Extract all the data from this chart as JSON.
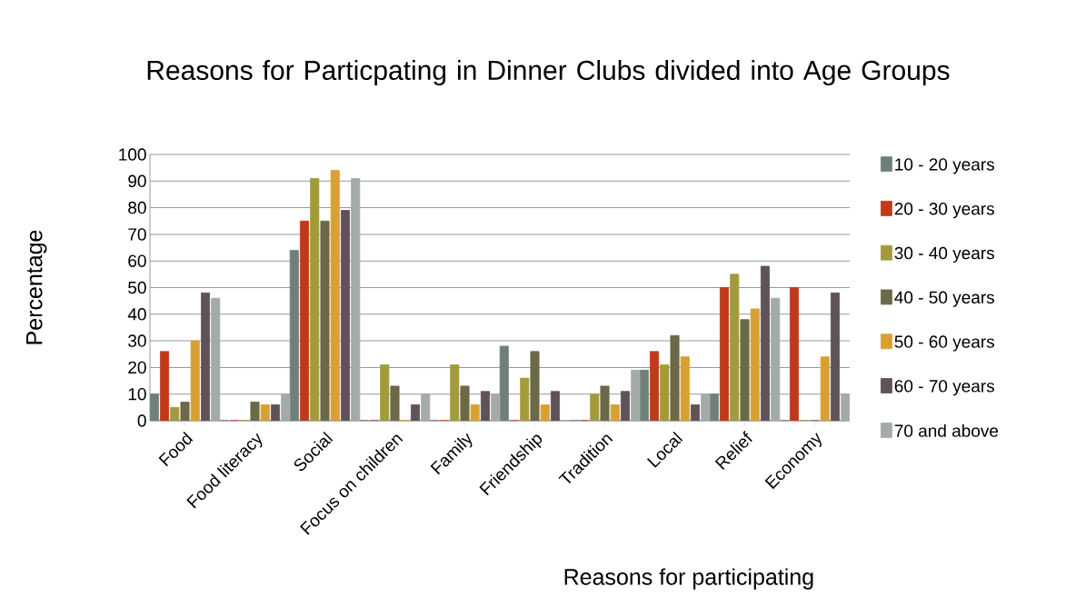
{
  "chart_data": {
    "type": "bar",
    "title": "Reasons for Particpating in Dinner Clubs divided into Age Groups",
    "xlabel": "Reasons for participating",
    "ylabel": "Percentage",
    "categories": [
      "Food",
      "Food literacy",
      "Social",
      "Focus on children",
      "Family",
      "Friendship",
      "Tradition",
      "Local",
      "Relief",
      "Economy"
    ],
    "series": [
      {
        "name": "10 - 20 years",
        "color": "#6f8079",
        "values": [
          10,
          0,
          64,
          0,
          0,
          28,
          0,
          19,
          10,
          0
        ]
      },
      {
        "name": "20 - 30 years",
        "color": "#c0391b",
        "values": [
          26,
          0,
          75,
          0,
          0,
          0,
          0,
          26,
          50,
          50
        ]
      },
      {
        "name": "30 - 40 years",
        "color": "#a39b3a",
        "values": [
          5,
          0,
          91,
          21,
          21,
          16,
          10,
          21,
          55,
          0
        ]
      },
      {
        "name": "40 - 50 years",
        "color": "#6c6949",
        "values": [
          7,
          7,
          75,
          13,
          13,
          26,
          13,
          32,
          38,
          0
        ]
      },
      {
        "name": "50 - 60 years",
        "color": "#d8a032",
        "values": [
          30,
          6,
          94,
          0,
          6,
          6,
          6,
          24,
          42,
          24
        ]
      },
      {
        "name": "60 - 70 years",
        "color": "#5f5259",
        "values": [
          48,
          6,
          79,
          6,
          11,
          11,
          11,
          6,
          58,
          48
        ]
      },
      {
        "name": "70 and above",
        "color": "#a4aba7",
        "values": [
          46,
          10,
          91,
          10,
          10,
          0,
          19,
          10,
          46,
          10
        ]
      }
    ],
    "ylim": [
      0,
      100
    ],
    "yticks": [
      0,
      10,
      20,
      30,
      40,
      50,
      60,
      70,
      80,
      90,
      100
    ],
    "grid": "y",
    "legend": "right"
  }
}
